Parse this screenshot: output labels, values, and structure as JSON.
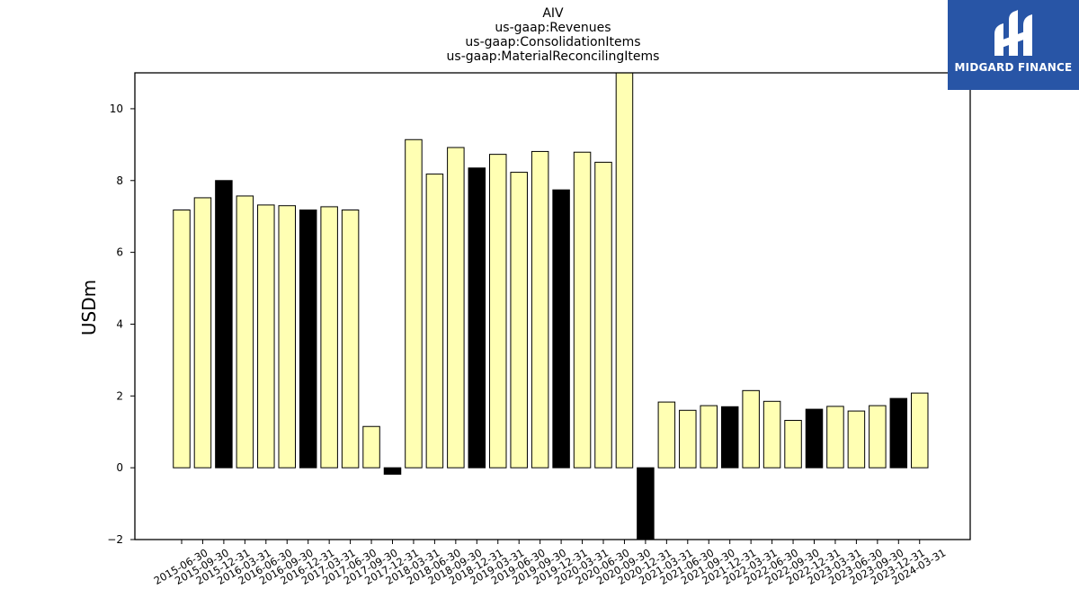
{
  "chart_data": {
    "type": "bar",
    "title_lines": [
      "AIV",
      "us-gaap:Revenues",
      "us-gaap:ConsolidationItems",
      "us-gaap:MaterialReconcilingItems"
    ],
    "xlabel": "",
    "ylabel": "USDm",
    "ylim": [
      -2,
      11
    ],
    "yticks": [
      -2,
      0,
      2,
      4,
      6,
      8,
      10
    ],
    "grid": false,
    "categories": [
      "2015-06-30",
      "2015-09-30",
      "2015-12-31",
      "2016-03-31",
      "2016-06-30",
      "2016-09-30",
      "2016-12-31",
      "2017-03-31",
      "2017-06-30",
      "2017-09-30",
      "2017-12-31",
      "2018-03-31",
      "2018-06-30",
      "2018-09-30",
      "2018-12-31",
      "2019-03-31",
      "2019-06-30",
      "2019-09-30",
      "2019-12-31",
      "2020-03-31",
      "2020-06-30",
      "2020-09-30",
      "2020-12-31",
      "2021-03-31",
      "2021-06-30",
      "2021-09-30",
      "2021-12-31",
      "2022-03-31",
      "2022-06-30",
      "2022-09-30",
      "2022-12-31",
      "2023-03-31",
      "2023-06-30",
      "2023-09-30",
      "2023-12-31",
      "2024-03-31"
    ],
    "values": [
      7.18,
      7.52,
      8.0,
      7.57,
      7.32,
      7.3,
      7.18,
      7.27,
      7.18,
      1.15,
      -0.18,
      9.14,
      8.18,
      8.92,
      8.35,
      8.73,
      8.23,
      8.81,
      7.74,
      8.79,
      8.51,
      11.0,
      -2.1,
      1.83,
      1.6,
      1.73,
      1.7,
      2.15,
      1.85,
      1.32,
      1.63,
      1.71,
      1.58,
      1.73,
      1.93,
      2.08
    ],
    "highlight": [
      false,
      false,
      true,
      false,
      false,
      false,
      true,
      false,
      false,
      false,
      true,
      false,
      false,
      false,
      true,
      false,
      false,
      false,
      true,
      false,
      false,
      false,
      true,
      false,
      false,
      false,
      true,
      false,
      false,
      false,
      true,
      false,
      false,
      false,
      true,
      false
    ],
    "colors": {
      "bar": "#ffffb3",
      "highlight_bar": "#000000",
      "edge": "#000000"
    }
  },
  "logo": {
    "text": "MIDGARD FINANCE",
    "icon": "midgard-logo-icon",
    "background": "#2855a6"
  }
}
